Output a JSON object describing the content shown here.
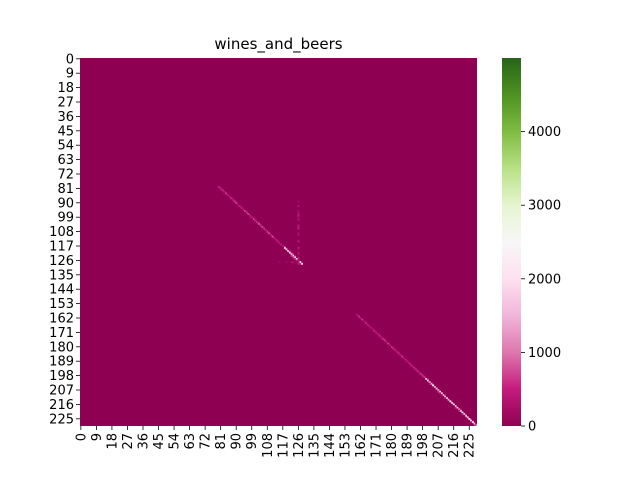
{
  "chart_data": {
    "type": "heatmap",
    "title": "wines_and_beers",
    "xlabel": "",
    "ylabel": "",
    "matrix_size": 230,
    "x_tick_labels": [
      "0",
      "9",
      "18",
      "27",
      "36",
      "45",
      "54",
      "63",
      "72",
      "81",
      "90",
      "99",
      "108",
      "117",
      "126",
      "135",
      "144",
      "153",
      "162",
      "171",
      "180",
      "189",
      "198",
      "207",
      "216",
      "225"
    ],
    "y_tick_labels": [
      "0",
      "9",
      "18",
      "27",
      "36",
      "45",
      "54",
      "63",
      "72",
      "81",
      "90",
      "99",
      "108",
      "117",
      "126",
      "135",
      "144",
      "153",
      "162",
      "171",
      "180",
      "189",
      "198",
      "207",
      "216",
      "225"
    ],
    "tick_step": 9,
    "colorbar": {
      "min": 0,
      "max": 5000,
      "ticks": [
        "0",
        "1000",
        "2000",
        "3000",
        "4000"
      ],
      "tick_values": [
        0,
        1000,
        2000,
        3000,
        4000
      ],
      "colormap": "PiYG",
      "colors": [
        "#8e0152",
        "#c51b7d",
        "#de77ae",
        "#f1b6da",
        "#fde0ef",
        "#f7f7f7",
        "#e6f5d0",
        "#b8e186",
        "#7fbc41",
        "#4d9221",
        "#276419"
      ]
    },
    "background_value": 0,
    "structures": [
      {
        "kind": "diagonal",
        "from": 80,
        "to": 118,
        "value": 700
      },
      {
        "kind": "diagonal",
        "from": 118,
        "to": 128,
        "value": 2500
      },
      {
        "kind": "diagonal",
        "from": 160,
        "to": 200,
        "value": 600
      },
      {
        "kind": "diagonal",
        "from": 200,
        "to": 229,
        "value": 2000
      },
      {
        "kind": "column",
        "col": 126,
        "row_from": 85,
        "row_to": 128,
        "value": 400
      },
      {
        "kind": "row",
        "row": 127,
        "col_from": 100,
        "col_to": 126,
        "value": 300
      }
    ]
  }
}
